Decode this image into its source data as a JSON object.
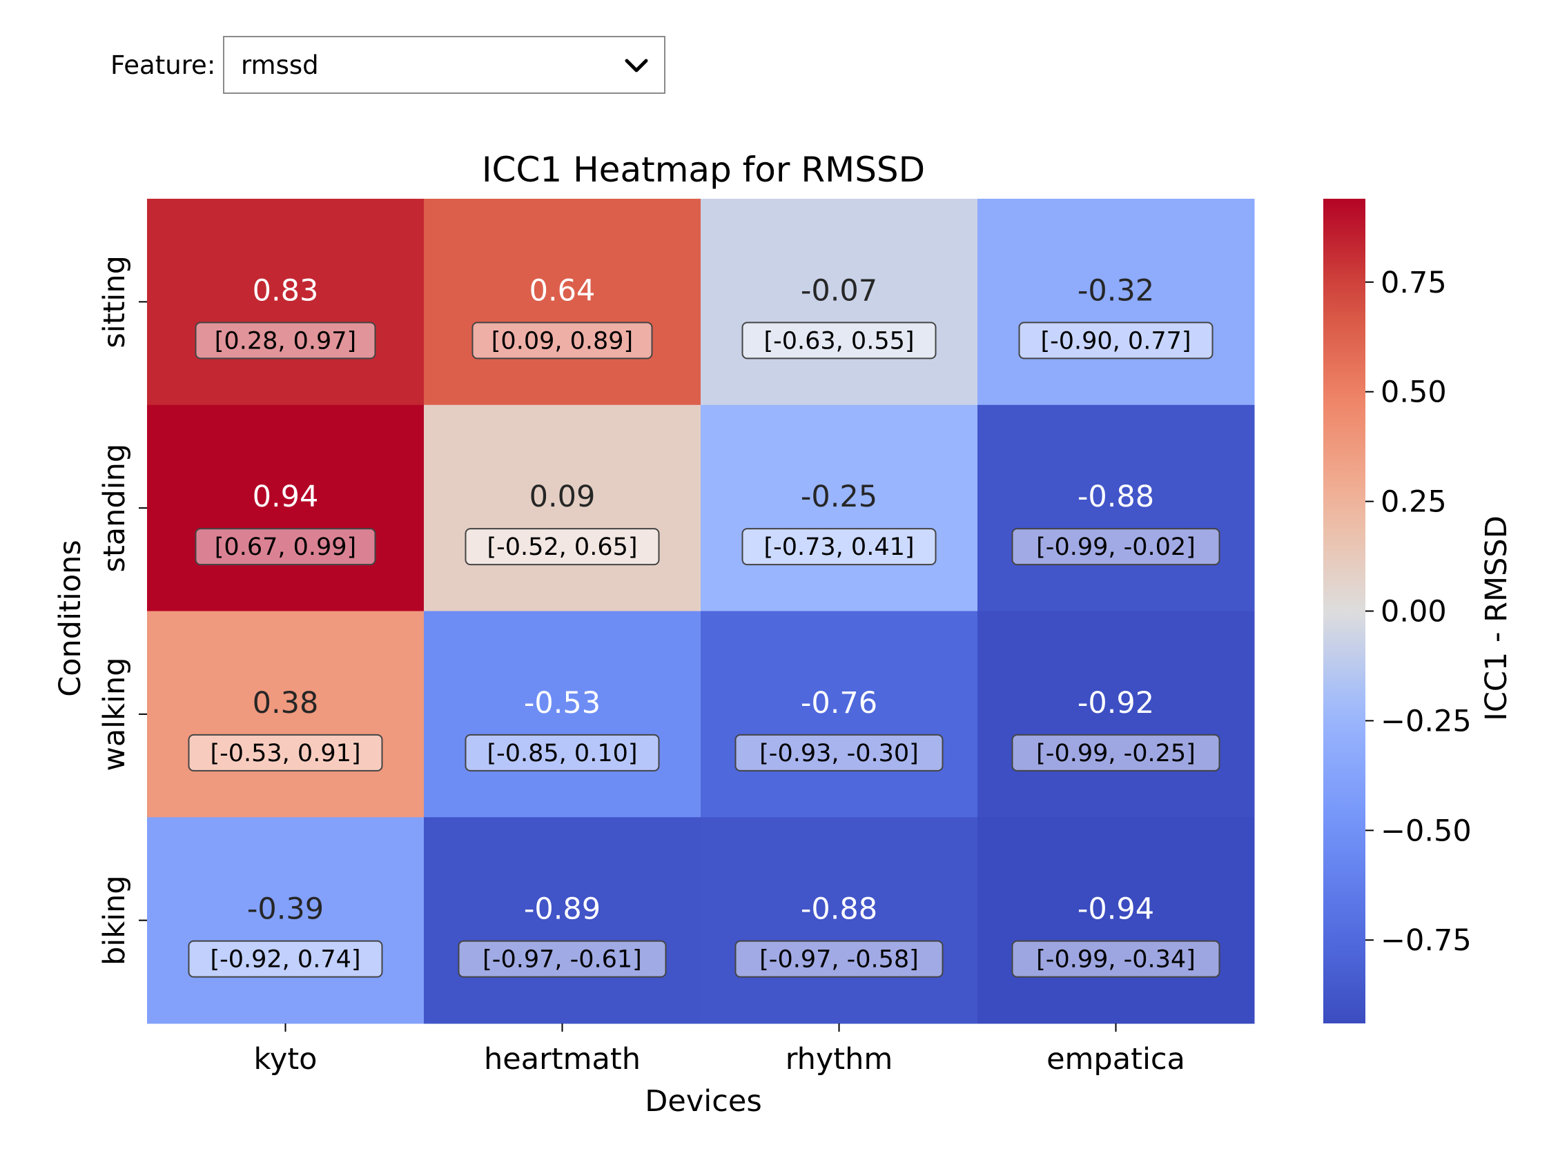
{
  "feature_selector": {
    "label": "Feature:",
    "selected": "rmssd"
  },
  "icons": {
    "dropdown": "chevron-down-icon"
  },
  "chart_data": {
    "type": "heatmap",
    "title": "ICC1 Heatmap for RMSSD",
    "xlabel": "Devices",
    "ylabel": "Conditions",
    "colorbar_label": "ICC1 - RMSSD",
    "colormap": "coolwarm",
    "vmin": -0.94,
    "vmax": 0.94,
    "colorbar_ticks": [
      0.75,
      0.5,
      0.25,
      0.0,
      -0.25,
      -0.5,
      -0.75
    ],
    "colorbar_tick_labels": [
      "0.75",
      "0.50",
      "0.25",
      "0.00",
      "−0.25",
      "−0.50",
      "−0.75"
    ],
    "columns": [
      "kyto",
      "heartmath",
      "rhythm",
      "empatica"
    ],
    "rows": [
      "sitting",
      "standing",
      "walking",
      "biking"
    ],
    "values": [
      [
        0.83,
        0.64,
        -0.07,
        -0.32
      ],
      [
        0.94,
        0.09,
        -0.25,
        -0.88
      ],
      [
        0.38,
        -0.53,
        -0.76,
        -0.92
      ],
      [
        -0.39,
        -0.89,
        -0.88,
        -0.94
      ]
    ],
    "value_labels": [
      [
        "0.83",
        "0.64",
        "-0.07",
        "-0.32"
      ],
      [
        "0.94",
        "0.09",
        "-0.25",
        "-0.88"
      ],
      [
        "0.38",
        "-0.53",
        "-0.76",
        "-0.92"
      ],
      [
        "-0.39",
        "-0.89",
        "-0.88",
        "-0.94"
      ]
    ],
    "ci_labels": [
      [
        "[0.28, 0.97]",
        "[0.09, 0.89]",
        "[-0.63, 0.55]",
        "[-0.90, 0.77]"
      ],
      [
        "[0.67, 0.99]",
        "[-0.52, 0.65]",
        "[-0.73, 0.41]",
        "[-0.99, -0.02]"
      ],
      [
        "[-0.53, 0.91]",
        "[-0.85, 0.10]",
        "[-0.93, -0.30]",
        "[-0.99, -0.25]"
      ],
      [
        "[-0.92, 0.74]",
        "[-0.97, -0.61]",
        "[-0.97, -0.58]",
        "[-0.99, -0.34]"
      ]
    ]
  }
}
